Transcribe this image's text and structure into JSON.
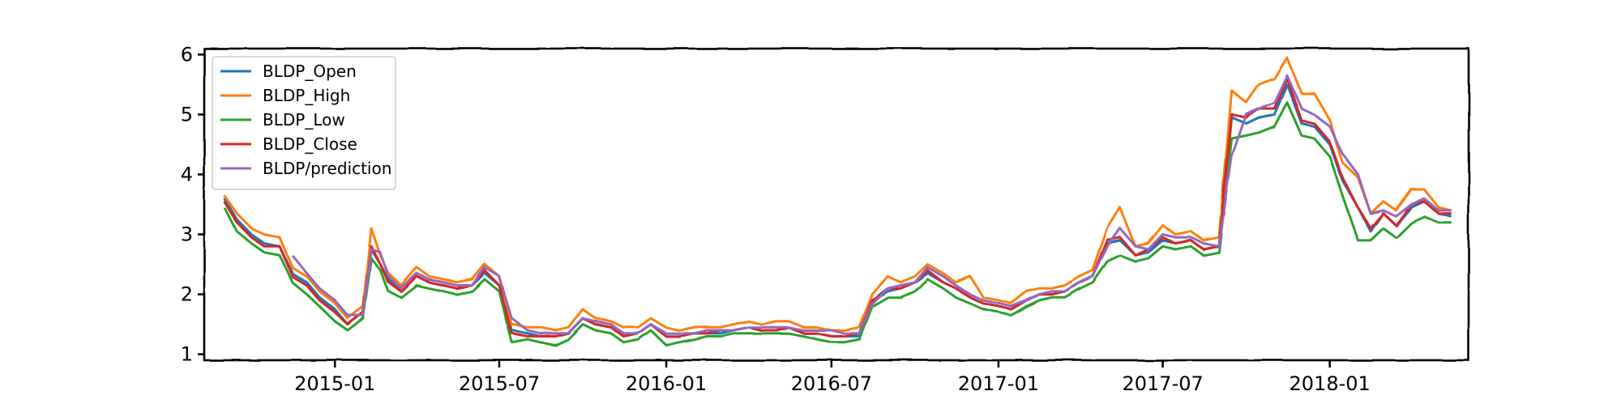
{
  "chart_data": {
    "type": "line",
    "title": "",
    "xlabel": "",
    "ylabel": "",
    "ylim": [
      0.9,
      6.1
    ],
    "xlim": [
      "2014-08-10",
      "2018-06-03"
    ],
    "y_ticks": [
      1,
      2,
      3,
      4,
      5,
      6
    ],
    "x_ticks": [
      "2015-01",
      "2015-07",
      "2016-01",
      "2016-07",
      "2017-01",
      "2017-07",
      "2018-01"
    ],
    "grid": false,
    "legend": "top-left",
    "style": "hand-drawn",
    "x": [
      "2014-09-01",
      "2014-09-15",
      "2014-10-01",
      "2014-10-15",
      "2014-11-01",
      "2014-11-15",
      "2014-12-01",
      "2014-12-15",
      "2015-01-01",
      "2015-01-15",
      "2015-02-01",
      "2015-02-10",
      "2015-02-20",
      "2015-03-01",
      "2015-03-15",
      "2015-04-01",
      "2015-04-15",
      "2015-05-01",
      "2015-05-15",
      "2015-06-01",
      "2015-06-15",
      "2015-07-01",
      "2015-07-15",
      "2015-08-01",
      "2015-08-15",
      "2015-09-01",
      "2015-09-15",
      "2015-10-01",
      "2015-10-15",
      "2015-11-01",
      "2015-11-15",
      "2015-12-01",
      "2015-12-15",
      "2016-01-01",
      "2016-01-15",
      "2016-02-01",
      "2016-02-15",
      "2016-03-01",
      "2016-03-15",
      "2016-04-01",
      "2016-04-15",
      "2016-05-01",
      "2016-05-15",
      "2016-06-01",
      "2016-06-15",
      "2016-07-01",
      "2016-07-15",
      "2016-08-01",
      "2016-08-15",
      "2016-09-01",
      "2016-09-15",
      "2016-10-01",
      "2016-10-15",
      "2016-11-01",
      "2016-11-15",
      "2016-12-01",
      "2016-12-15",
      "2017-01-01",
      "2017-01-15",
      "2017-02-01",
      "2017-02-15",
      "2017-03-01",
      "2017-03-15",
      "2017-04-01",
      "2017-04-15",
      "2017-05-01",
      "2017-05-15",
      "2017-06-01",
      "2017-06-15",
      "2017-07-01",
      "2017-07-15",
      "2017-08-01",
      "2017-08-15",
      "2017-09-01",
      "2017-09-15",
      "2017-10-01",
      "2017-10-15",
      "2017-11-01",
      "2017-11-15",
      "2017-12-01",
      "2017-12-15",
      "2018-01-01",
      "2018-01-15",
      "2018-02-01",
      "2018-02-15",
      "2018-03-01",
      "2018-03-15",
      "2018-04-01",
      "2018-04-15",
      "2018-05-01",
      "2018-05-15"
    ],
    "series": [
      {
        "name": "BLDP_Open",
        "color": "#1f77b4",
        "values": [
          3.6,
          3.25,
          3.0,
          2.85,
          2.8,
          2.35,
          2.2,
          1.95,
          1.75,
          1.5,
          1.7,
          2.75,
          2.5,
          2.25,
          2.05,
          2.3,
          2.2,
          2.15,
          2.1,
          2.15,
          2.35,
          2.15,
          1.4,
          1.35,
          1.3,
          1.3,
          1.35,
          1.6,
          1.5,
          1.45,
          1.3,
          1.35,
          1.5,
          1.3,
          1.3,
          1.35,
          1.35,
          1.35,
          1.4,
          1.45,
          1.4,
          1.4,
          1.45,
          1.35,
          1.35,
          1.3,
          1.3,
          1.3,
          1.9,
          2.05,
          2.1,
          2.2,
          2.35,
          2.2,
          2.1,
          1.95,
          1.85,
          1.8,
          1.75,
          1.9,
          2.0,
          2.0,
          2.05,
          2.2,
          2.3,
          2.85,
          2.9,
          2.65,
          2.7,
          2.9,
          2.85,
          2.9,
          2.75,
          2.8,
          4.95,
          4.85,
          4.95,
          5.0,
          5.5,
          4.85,
          4.8,
          4.5,
          3.9,
          3.45,
          3.05,
          3.35,
          3.15,
          3.45,
          3.55,
          3.35,
          3.3
        ]
      },
      {
        "name": "BLDP_High",
        "color": "#ff7f0e",
        "values": [
          3.65,
          3.35,
          3.1,
          3.0,
          2.95,
          2.45,
          2.3,
          2.05,
          1.85,
          1.6,
          1.8,
          3.1,
          2.65,
          2.35,
          2.15,
          2.45,
          2.3,
          2.25,
          2.2,
          2.25,
          2.5,
          2.3,
          1.5,
          1.45,
          1.45,
          1.4,
          1.45,
          1.75,
          1.6,
          1.55,
          1.45,
          1.45,
          1.6,
          1.45,
          1.4,
          1.45,
          1.45,
          1.45,
          1.5,
          1.55,
          1.5,
          1.55,
          1.55,
          1.45,
          1.45,
          1.4,
          1.4,
          1.45,
          2.0,
          2.3,
          2.2,
          2.3,
          2.5,
          2.35,
          2.2,
          2.3,
          1.95,
          1.9,
          1.85,
          2.05,
          2.1,
          2.1,
          2.15,
          2.3,
          2.4,
          3.1,
          3.45,
          2.8,
          2.85,
          3.15,
          3.0,
          3.05,
          2.9,
          2.95,
          5.4,
          5.2,
          5.5,
          5.6,
          5.95,
          5.35,
          5.35,
          4.9,
          4.2,
          3.95,
          3.35,
          3.55,
          3.4,
          3.75,
          3.75,
          3.45,
          3.4
        ]
      },
      {
        "name": "BLDP_Low",
        "color": "#2ca02c",
        "values": [
          3.45,
          3.05,
          2.85,
          2.7,
          2.65,
          2.2,
          2.0,
          1.8,
          1.55,
          1.4,
          1.6,
          2.6,
          2.4,
          2.05,
          1.95,
          2.15,
          2.1,
          2.05,
          2.0,
          2.05,
          2.25,
          2.05,
          1.2,
          1.25,
          1.2,
          1.15,
          1.25,
          1.5,
          1.4,
          1.35,
          1.2,
          1.25,
          1.4,
          1.15,
          1.2,
          1.25,
          1.3,
          1.3,
          1.35,
          1.35,
          1.35,
          1.35,
          1.35,
          1.3,
          1.25,
          1.2,
          1.2,
          1.25,
          1.8,
          1.95,
          1.95,
          2.05,
          2.25,
          2.1,
          1.95,
          1.85,
          1.75,
          1.7,
          1.65,
          1.8,
          1.9,
          1.95,
          1.95,
          2.1,
          2.2,
          2.55,
          2.65,
          2.55,
          2.6,
          2.8,
          2.75,
          2.8,
          2.65,
          2.7,
          4.6,
          4.65,
          4.7,
          4.8,
          5.2,
          4.65,
          4.6,
          4.3,
          3.65,
          2.9,
          2.9,
          3.1,
          2.95,
          3.2,
          3.3,
          3.2,
          3.2
        ]
      },
      {
        "name": "BLDP_Close",
        "color": "#d62728",
        "values": [
          3.55,
          3.2,
          2.95,
          2.8,
          2.8,
          2.3,
          2.15,
          1.9,
          1.7,
          1.5,
          1.7,
          2.8,
          2.5,
          2.2,
          2.05,
          2.3,
          2.2,
          2.15,
          2.1,
          2.15,
          2.4,
          2.15,
          1.35,
          1.3,
          1.3,
          1.3,
          1.35,
          1.6,
          1.5,
          1.45,
          1.3,
          1.35,
          1.5,
          1.3,
          1.3,
          1.35,
          1.35,
          1.4,
          1.4,
          1.45,
          1.4,
          1.4,
          1.45,
          1.35,
          1.35,
          1.3,
          1.3,
          1.35,
          1.9,
          2.1,
          2.1,
          2.2,
          2.4,
          2.2,
          2.1,
          1.95,
          1.85,
          1.8,
          1.75,
          1.9,
          2.0,
          2.0,
          2.05,
          2.2,
          2.3,
          2.9,
          2.95,
          2.65,
          2.75,
          2.95,
          2.85,
          2.9,
          2.75,
          2.8,
          5.0,
          4.95,
          5.1,
          5.1,
          5.6,
          4.9,
          4.85,
          4.55,
          3.95,
          3.45,
          3.1,
          3.35,
          3.15,
          3.5,
          3.55,
          3.35,
          3.35
        ]
      },
      {
        "name": "BLDP/prediction",
        "color": "#9467bd",
        "values": [
          null,
          null,
          null,
          null,
          null,
          2.65,
          2.35,
          2.1,
          1.9,
          1.65,
          1.65,
          2.75,
          2.7,
          2.3,
          2.1,
          2.35,
          2.25,
          2.2,
          2.15,
          2.15,
          2.45,
          2.3,
          1.6,
          1.4,
          1.35,
          1.35,
          1.35,
          1.6,
          1.55,
          1.5,
          1.35,
          1.35,
          1.5,
          1.35,
          1.35,
          1.35,
          1.4,
          1.4,
          1.4,
          1.45,
          1.45,
          1.45,
          1.45,
          1.4,
          1.4,
          1.4,
          1.35,
          1.35,
          1.85,
          2.1,
          2.15,
          2.2,
          2.45,
          2.3,
          2.15,
          2.0,
          1.9,
          1.85,
          1.8,
          1.9,
          2.0,
          2.05,
          2.05,
          2.2,
          2.3,
          2.8,
          3.1,
          2.8,
          2.75,
          3.0,
          2.95,
          2.95,
          2.85,
          2.8,
          4.3,
          5.0,
          5.1,
          5.2,
          5.65,
          5.1,
          5.0,
          4.8,
          4.35,
          4.0,
          3.35,
          3.4,
          3.3,
          3.5,
          3.6,
          3.4,
          3.4
        ]
      }
    ]
  }
}
